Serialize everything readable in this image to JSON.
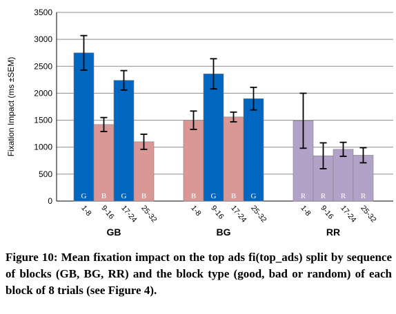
{
  "chart_data": {
    "type": "bar",
    "ylabel": "Fixation Impact (ms ±SEM)",
    "ylim": [
      0,
      3500
    ],
    "yticks": [
      0,
      500,
      1000,
      1500,
      2000,
      2500,
      3000,
      3500
    ],
    "grid": true,
    "legend": "none",
    "colors": {
      "G": "#0066c0",
      "B": "#d99795",
      "R": "#b3a2c7"
    },
    "groups": [
      {
        "name": "GB",
        "bars": [
          {
            "category": "1-8",
            "type": "G",
            "value": 2750,
            "err": 320
          },
          {
            "category": "9-16",
            "type": "B",
            "value": 1420,
            "err": 130
          },
          {
            "category": "17-24",
            "type": "G",
            "value": 2240,
            "err": 180
          },
          {
            "category": "25-32",
            "type": "B",
            "value": 1100,
            "err": 140
          }
        ]
      },
      {
        "name": "BG",
        "bars": [
          {
            "category": "1-8",
            "type": "B",
            "value": 1500,
            "err": 170
          },
          {
            "category": "9-16",
            "type": "G",
            "value": 2360,
            "err": 280
          },
          {
            "category": "17-24",
            "type": "B",
            "value": 1560,
            "err": 90
          },
          {
            "category": "25-32",
            "type": "G",
            "value": 1900,
            "err": 210
          }
        ]
      },
      {
        "name": "RR",
        "bars": [
          {
            "category": "1-8",
            "type": "R",
            "value": 1490,
            "err": 510
          },
          {
            "category": "9-16",
            "type": "R",
            "value": 840,
            "err": 240
          },
          {
            "category": "17-24",
            "type": "R",
            "value": 960,
            "err": 130
          },
          {
            "category": "25-32",
            "type": "R",
            "value": 850,
            "err": 140
          }
        ]
      }
    ]
  },
  "caption": "Figure 10: Mean fixation impact on the top ads fi(top_ads) split by sequence of blocks (GB, BG, RR) and the block type (good, bad or random) of each block of 8 trials (see Figure 4)."
}
